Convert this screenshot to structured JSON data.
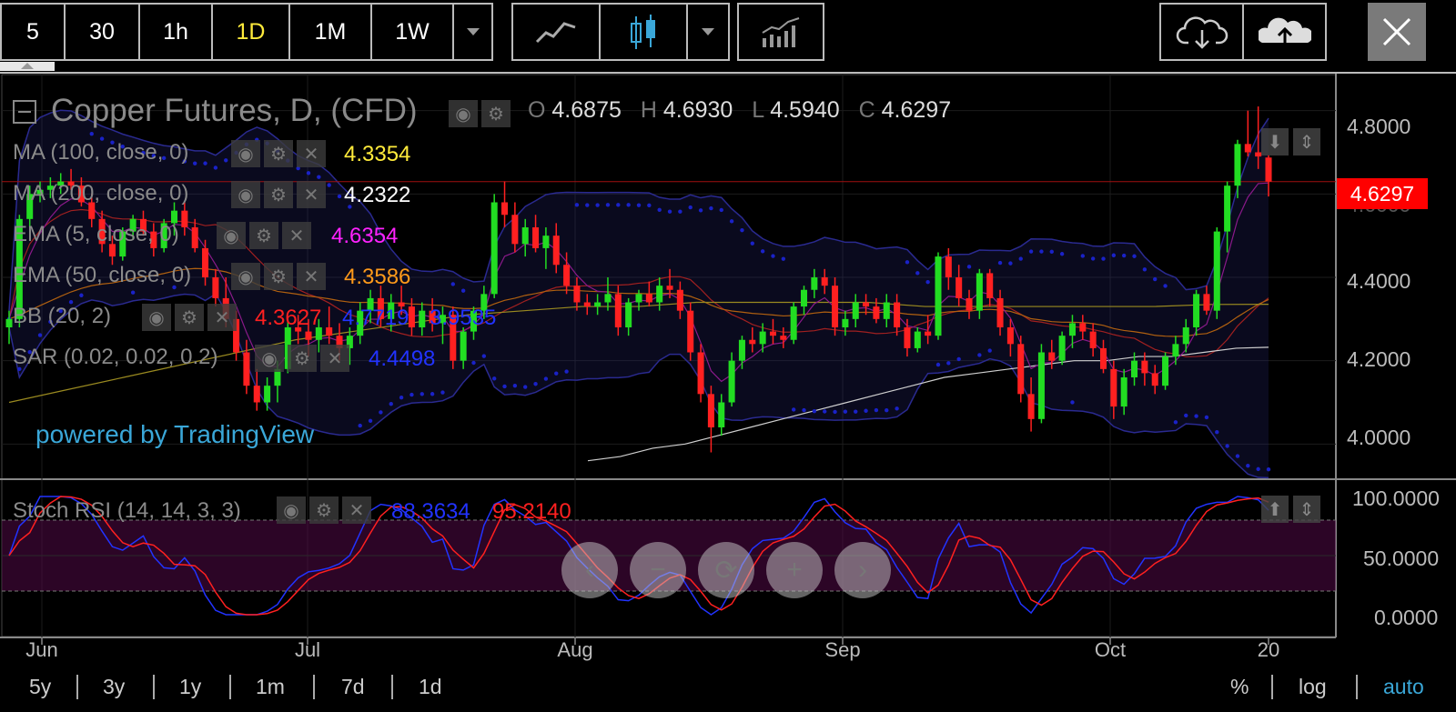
{
  "toolbar": {
    "intervals": [
      "5",
      "30",
      "1h",
      "1D",
      "1M",
      "1W"
    ],
    "active_interval": "1D"
  },
  "chart_title": "Copper Futures, D, (CFD)",
  "ohlc": {
    "o_label": "O",
    "o": "4.6875",
    "h_label": "H",
    "h": "4.6930",
    "l_label": "L",
    "l": "4.5940",
    "c_label": "C",
    "c": "4.6297"
  },
  "indicators": [
    {
      "label": "MA (100, close, 0)",
      "value": "4.3354",
      "color": "#ffeb3b"
    },
    {
      "label": "MA (200, close, 0)",
      "value": "4.2322",
      "color": "#ffffff"
    },
    {
      "label": "EMA (5, close, 0)",
      "value": "4.6354",
      "color": "#ff22ff"
    },
    {
      "label": "EMA (50, close, 0)",
      "value": "4.3586",
      "color": "#ff9a1a"
    },
    {
      "label": "BB (20, 2)",
      "values": [
        "4.3627",
        "4.7719",
        "3.9535"
      ],
      "colors": [
        "#ff2020",
        "#2233ff",
        "#2233ff"
      ]
    },
    {
      "label": "SAR (0.02, 0.02, 0.2)",
      "value": "4.4498",
      "color": "#2233ff"
    }
  ],
  "stoch": {
    "label": "Stoch RSI (14, 14, 3, 3)",
    "k": "88.3634",
    "d": "95.2140",
    "k_color": "#2233ff",
    "d_color": "#ff2020"
  },
  "watermark": "powered by TradingView",
  "last_price": "4.6297",
  "price_ticks": [
    "4.8000",
    "4.6000",
    "4.4000",
    "4.2000",
    "4.0000"
  ],
  "stoch_ticks": [
    "100.0000",
    "50.0000",
    "0.0000"
  ],
  "x_labels": [
    "Jun",
    "Jul",
    "Aug",
    "Sep",
    "Oct",
    "20"
  ],
  "ranges": [
    "5y",
    "3y",
    "1y",
    "1m",
    "7d",
    "1d"
  ],
  "scale_options": [
    "%",
    "log",
    "auto"
  ],
  "colors": {
    "up": "#22dd22",
    "down": "#ff2020",
    "accent": "#3aa7d8"
  },
  "chart_data": {
    "type": "candlestick",
    "title": "Copper Futures, D, (CFD)",
    "ylim": [
      3.92,
      4.88
    ],
    "x_labels": [
      "Jun",
      "Jul",
      "Aug",
      "Sep",
      "Oct",
      "20"
    ],
    "candles": [
      [
        4.28,
        4.32,
        4.24,
        4.3
      ],
      [
        4.3,
        4.55,
        4.28,
        4.54
      ],
      [
        4.54,
        4.62,
        4.52,
        4.6
      ],
      [
        4.6,
        4.63,
        4.58,
        4.61
      ],
      [
        4.61,
        4.64,
        4.59,
        4.62
      ],
      [
        4.62,
        4.65,
        4.6,
        4.63
      ],
      [
        4.63,
        4.66,
        4.61,
        4.62
      ],
      [
        4.62,
        4.64,
        4.57,
        4.58
      ],
      [
        4.58,
        4.6,
        4.52,
        4.54
      ],
      [
        4.54,
        4.56,
        4.46,
        4.48
      ],
      [
        4.48,
        4.5,
        4.43,
        4.45
      ],
      [
        4.45,
        4.52,
        4.44,
        4.51
      ],
      [
        4.51,
        4.55,
        4.49,
        4.54
      ],
      [
        4.54,
        4.56,
        4.5,
        4.51
      ],
      [
        4.51,
        4.53,
        4.45,
        4.47
      ],
      [
        4.47,
        4.54,
        4.46,
        4.53
      ],
      [
        4.53,
        4.58,
        4.5,
        4.56
      ],
      [
        4.56,
        4.58,
        4.5,
        4.52
      ],
      [
        4.52,
        4.54,
        4.46,
        4.47
      ],
      [
        4.47,
        4.49,
        4.38,
        4.4
      ],
      [
        4.4,
        4.42,
        4.33,
        4.35
      ],
      [
        4.35,
        4.4,
        4.28,
        4.3
      ],
      [
        4.3,
        4.32,
        4.2,
        4.22
      ],
      [
        4.22,
        4.25,
        4.12,
        4.14
      ],
      [
        4.14,
        4.18,
        4.08,
        4.1
      ],
      [
        4.1,
        4.16,
        4.08,
        4.14
      ],
      [
        4.14,
        4.2,
        4.1,
        4.18
      ],
      [
        4.18,
        4.3,
        4.17,
        4.28
      ],
      [
        4.28,
        4.31,
        4.24,
        4.27
      ],
      [
        4.27,
        4.3,
        4.21,
        4.25
      ],
      [
        4.25,
        4.3,
        4.22,
        4.28
      ],
      [
        4.28,
        4.33,
        4.24,
        4.26
      ],
      [
        4.26,
        4.29,
        4.2,
        4.23
      ],
      [
        4.23,
        4.28,
        4.19,
        4.26
      ],
      [
        4.26,
        4.34,
        4.24,
        4.32
      ],
      [
        4.32,
        4.37,
        4.29,
        4.35
      ],
      [
        4.35,
        4.38,
        4.28,
        4.3
      ],
      [
        4.3,
        4.36,
        4.27,
        4.34
      ],
      [
        4.34,
        4.38,
        4.31,
        4.33
      ],
      [
        4.33,
        4.35,
        4.26,
        4.28
      ],
      [
        4.28,
        4.34,
        4.26,
        4.32
      ],
      [
        4.32,
        4.35,
        4.27,
        4.29
      ],
      [
        4.29,
        4.33,
        4.24,
        4.31
      ],
      [
        4.31,
        4.33,
        4.18,
        4.2
      ],
      [
        4.2,
        4.28,
        4.18,
        4.27
      ],
      [
        4.27,
        4.33,
        4.25,
        4.32
      ],
      [
        4.32,
        4.38,
        4.3,
        4.36
      ],
      [
        4.36,
        4.6,
        4.35,
        4.58
      ],
      [
        4.58,
        4.63,
        4.52,
        4.55
      ],
      [
        4.55,
        4.58,
        4.46,
        4.48
      ],
      [
        4.48,
        4.54,
        4.45,
        4.52
      ],
      [
        4.52,
        4.55,
        4.46,
        4.47
      ],
      [
        4.47,
        4.52,
        4.42,
        4.5
      ],
      [
        4.5,
        4.53,
        4.41,
        4.43
      ],
      [
        4.43,
        4.46,
        4.36,
        4.38
      ],
      [
        4.38,
        4.4,
        4.32,
        4.34
      ],
      [
        4.34,
        4.36,
        4.31,
        4.33
      ],
      [
        4.33,
        4.36,
        4.31,
        4.34
      ],
      [
        4.34,
        4.4,
        4.32,
        4.36
      ],
      [
        4.36,
        4.38,
        4.26,
        4.28
      ],
      [
        4.28,
        4.35,
        4.26,
        4.34
      ],
      [
        4.34,
        4.37,
        4.32,
        4.36
      ],
      [
        4.36,
        4.39,
        4.33,
        4.34
      ],
      [
        4.34,
        4.4,
        4.32,
        4.38
      ],
      [
        4.38,
        4.42,
        4.35,
        4.37
      ],
      [
        4.37,
        4.39,
        4.3,
        4.32
      ],
      [
        4.32,
        4.34,
        4.2,
        4.22
      ],
      [
        4.22,
        4.24,
        4.1,
        4.12
      ],
      [
        4.12,
        4.14,
        3.98,
        4.04
      ],
      [
        4.04,
        4.12,
        4.02,
        4.1
      ],
      [
        4.1,
        4.22,
        4.09,
        4.2
      ],
      [
        4.2,
        4.26,
        4.18,
        4.25
      ],
      [
        4.25,
        4.28,
        4.22,
        4.24
      ],
      [
        4.24,
        4.29,
        4.22,
        4.27
      ],
      [
        4.27,
        4.3,
        4.24,
        4.26
      ],
      [
        4.26,
        4.28,
        4.23,
        4.25
      ],
      [
        4.25,
        4.34,
        4.24,
        4.33
      ],
      [
        4.33,
        4.38,
        4.31,
        4.37
      ],
      [
        4.37,
        4.42,
        4.35,
        4.4
      ],
      [
        4.4,
        4.42,
        4.36,
        4.38
      ],
      [
        4.38,
        4.4,
        4.26,
        4.28
      ],
      [
        4.28,
        4.32,
        4.26,
        4.3
      ],
      [
        4.3,
        4.36,
        4.28,
        4.34
      ],
      [
        4.34,
        4.36,
        4.31,
        4.33
      ],
      [
        4.33,
        4.35,
        4.29,
        4.3
      ],
      [
        4.3,
        4.36,
        4.28,
        4.34
      ],
      [
        4.34,
        4.36,
        4.26,
        4.28
      ],
      [
        4.28,
        4.3,
        4.21,
        4.23
      ],
      [
        4.23,
        4.28,
        4.22,
        4.27
      ],
      [
        4.27,
        4.31,
        4.24,
        4.26
      ],
      [
        4.26,
        4.46,
        4.25,
        4.45
      ],
      [
        4.45,
        4.47,
        4.37,
        4.4
      ],
      [
        4.4,
        4.43,
        4.33,
        4.35
      ],
      [
        4.35,
        4.37,
        4.3,
        4.32
      ],
      [
        4.32,
        4.42,
        4.3,
        4.41
      ],
      [
        4.41,
        4.42,
        4.33,
        4.35
      ],
      [
        4.35,
        4.37,
        4.26,
        4.28
      ],
      [
        4.28,
        4.3,
        4.21,
        4.24
      ],
      [
        4.24,
        4.26,
        4.1,
        4.12
      ],
      [
        4.12,
        4.16,
        4.03,
        4.06
      ],
      [
        4.06,
        4.24,
        4.05,
        4.22
      ],
      [
        4.22,
        4.25,
        4.18,
        4.2
      ],
      [
        4.2,
        4.27,
        4.19,
        4.26
      ],
      [
        4.26,
        4.31,
        4.23,
        4.29
      ],
      [
        4.29,
        4.31,
        4.25,
        4.27
      ],
      [
        4.27,
        4.29,
        4.21,
        4.23
      ],
      [
        4.23,
        4.25,
        4.17,
        4.18
      ],
      [
        4.18,
        4.2,
        4.06,
        4.09
      ],
      [
        4.09,
        4.18,
        4.07,
        4.16
      ],
      [
        4.16,
        4.22,
        4.14,
        4.2
      ],
      [
        4.2,
        4.22,
        4.14,
        4.17
      ],
      [
        4.17,
        4.19,
        4.12,
        4.14
      ],
      [
        4.14,
        4.22,
        4.13,
        4.21
      ],
      [
        4.21,
        4.26,
        4.19,
        4.24
      ],
      [
        4.24,
        4.3,
        4.22,
        4.28
      ],
      [
        4.28,
        4.37,
        4.26,
        4.36
      ],
      [
        4.36,
        4.38,
        4.31,
        4.32
      ],
      [
        4.32,
        4.52,
        4.3,
        4.51
      ],
      [
        4.51,
        4.63,
        4.46,
        4.62
      ],
      [
        4.62,
        4.73,
        4.59,
        4.72
      ],
      [
        4.72,
        4.8,
        4.69,
        4.7
      ],
      [
        4.7,
        4.81,
        4.66,
        4.69
      ],
      [
        4.6875,
        4.693,
        4.594,
        4.6297
      ]
    ],
    "ma100": [
      4.1,
      4.13,
      4.16,
      4.19,
      4.22,
      4.25,
      4.27,
      4.29,
      4.31,
      4.32,
      4.33,
      4.33,
      4.34,
      4.34,
      4.34,
      4.34,
      4.33,
      4.33,
      4.33,
      4.33,
      4.33,
      4.335,
      4.3354
    ],
    "ma200": [
      3.96,
      3.97,
      3.99,
      4.0,
      4.02,
      4.04,
      4.06,
      4.08,
      4.1,
      4.12,
      4.14,
      4.16,
      4.17,
      4.18,
      4.19,
      4.2,
      4.2,
      4.21,
      4.21,
      4.22,
      4.23,
      4.2322
    ],
    "stoch_k_last": 88.3634,
    "stoch_d_last": 95.214,
    "stoch_ylim": [
      0,
      100
    ]
  }
}
